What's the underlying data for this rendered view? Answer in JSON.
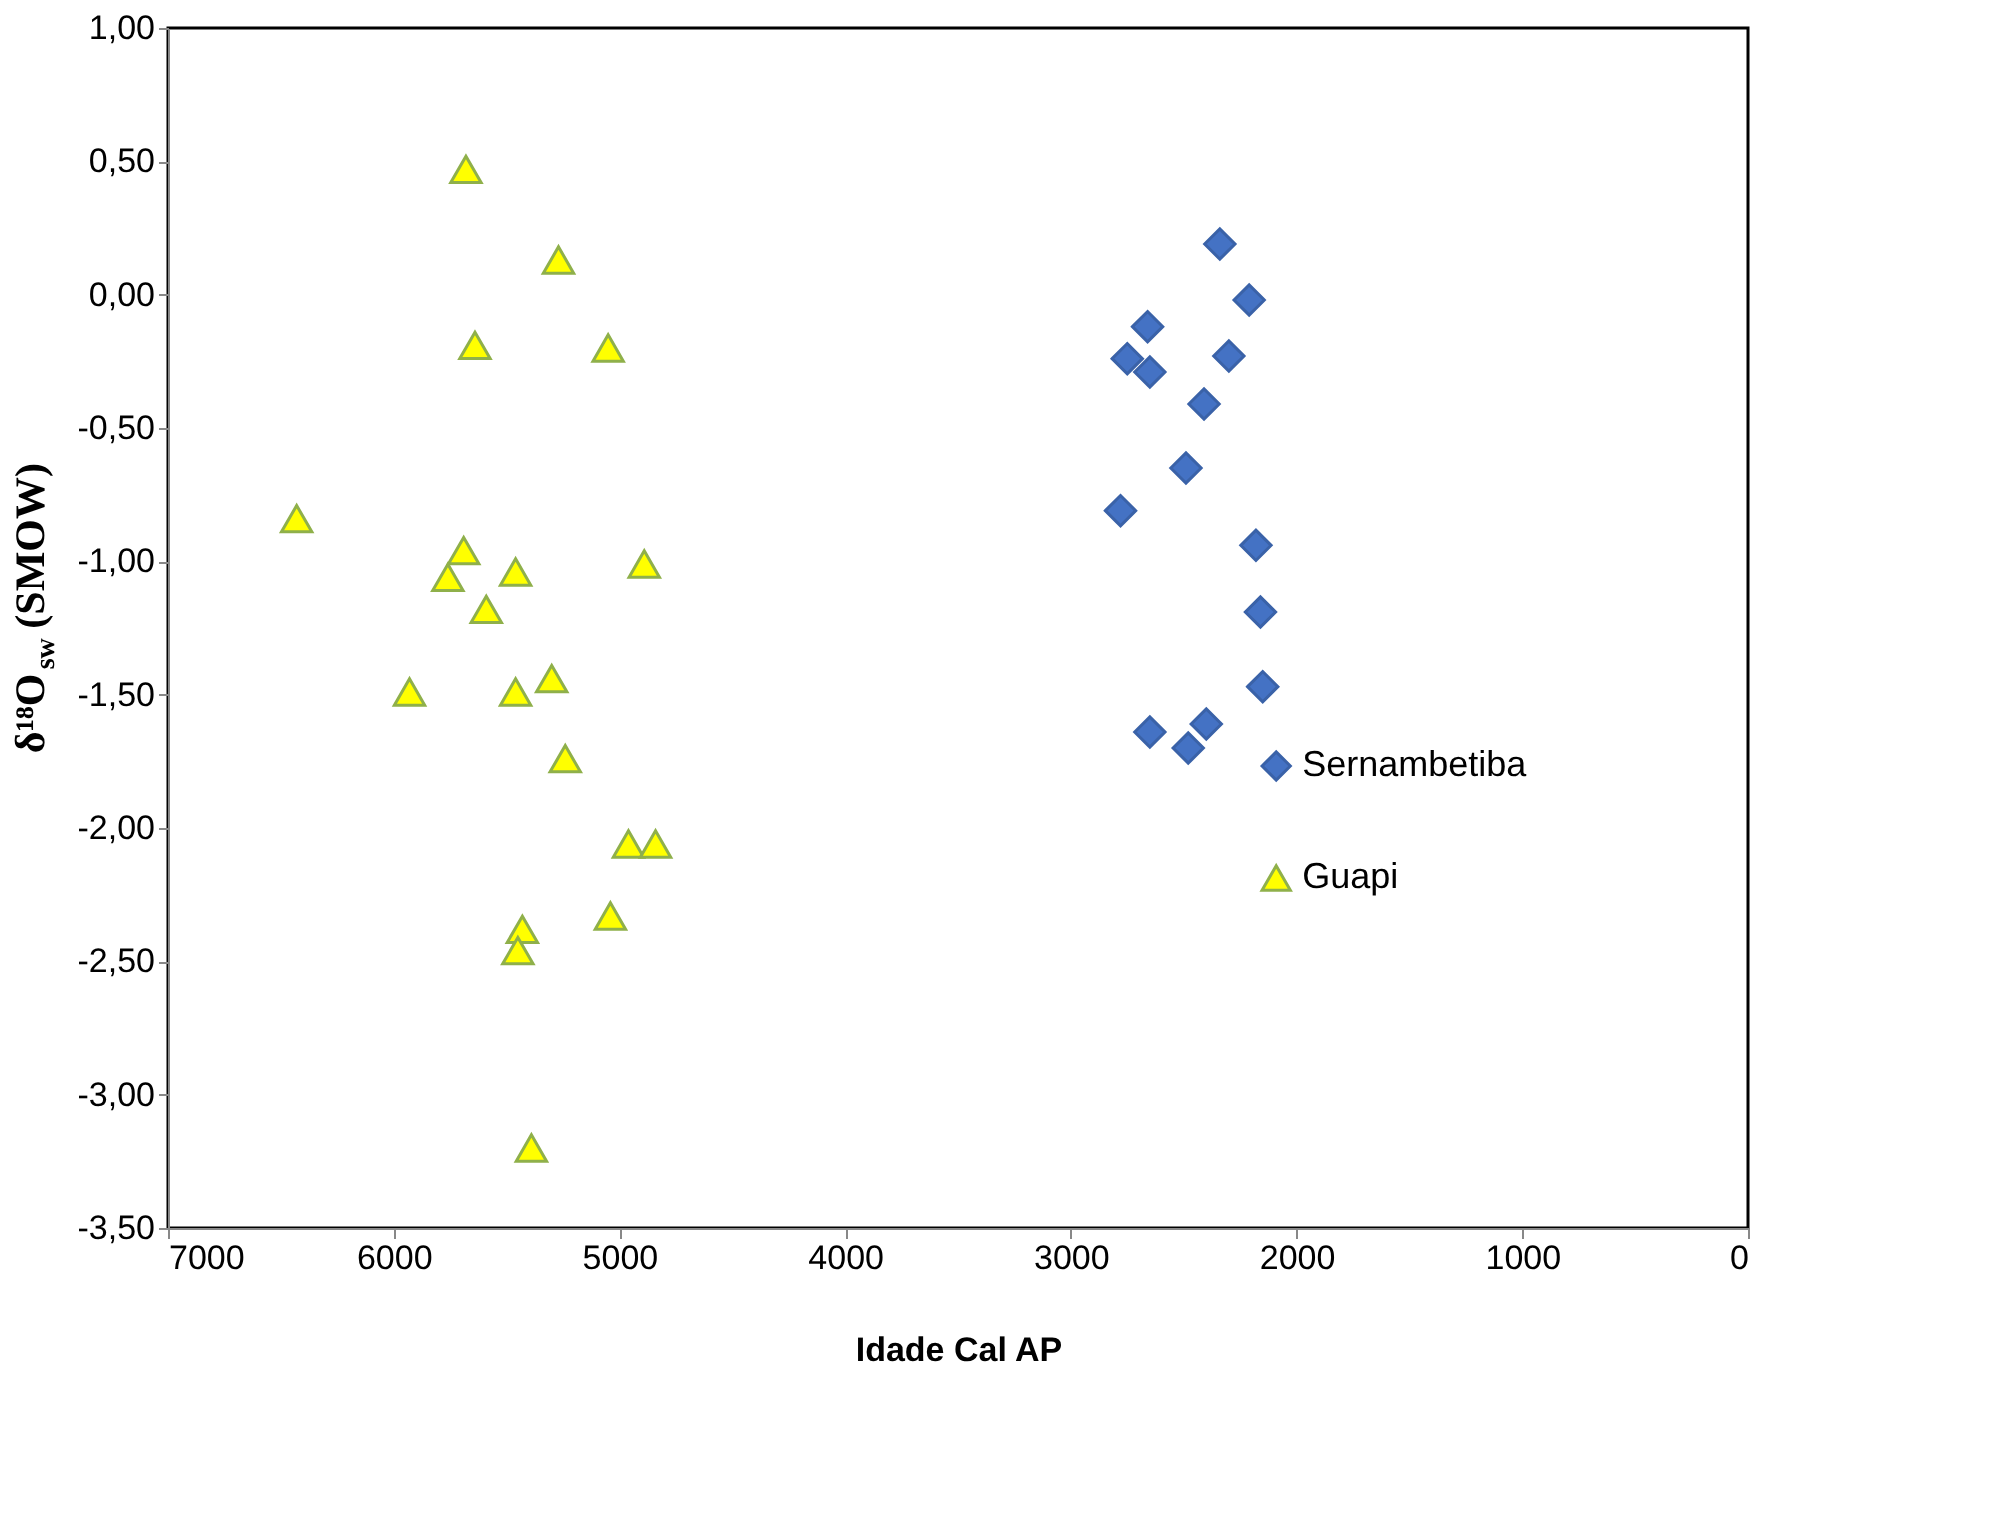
{
  "chart_data": {
    "type": "scatter",
    "xlabel": "Idade Cal AP",
    "ylabel": "δ¹⁸O$_{sw}$ (SMOW)",
    "xlim": [
      7000,
      0
    ],
    "xticks": [
      {
        "value": 7000,
        "label": "7000"
      },
      {
        "value": 6000,
        "label": "6000"
      },
      {
        "value": 5000,
        "label": "5000"
      },
      {
        "value": 4000,
        "label": "4000"
      },
      {
        "value": 3000,
        "label": "3000"
      },
      {
        "value": 2000,
        "label": "2000"
      },
      {
        "value": 1000,
        "label": "1000"
      },
      0
    ],
    "ylim": [
      -3.5,
      1.0
    ],
    "yticks": [
      {
        "value": 1.0,
        "label": "1,00"
      },
      {
        "value": 0.5,
        "label": "0,50"
      },
      {
        "value": 0.0,
        "label": "0,00"
      },
      {
        "value": -0.5,
        "label": "-0,50"
      },
      {
        "value": -1.0,
        "label": "-1,00"
      },
      {
        "value": -1.5,
        "label": "-1,50"
      },
      {
        "value": -2.0,
        "label": "-2,00"
      },
      {
        "value": -2.5,
        "label": "-2,50"
      },
      {
        "value": -3.0,
        "label": "-3,00"
      },
      {
        "value": -3.5,
        "label": "-3,50"
      }
    ],
    "grid": false,
    "legend": "right",
    "series": [
      {
        "name": "Sernambetiba",
        "color": "#4472c4",
        "marker": "diamond",
        "x": [
          2340,
          2210,
          2660,
          2750,
          2650,
          2300,
          2410,
          2490,
          2780,
          2180,
          2160,
          2150,
          2650,
          2400,
          2480
        ],
        "values": [
          0.19,
          -0.02,
          -0.12,
          -0.24,
          -0.29,
          -0.23,
          -0.41,
          -0.65,
          -0.81,
          -0.94,
          -1.19,
          -1.47,
          -1.64,
          -1.61,
          -1.7
        ]
      },
      {
        "name": "Guapi",
        "color": "#ffff00",
        "marker": "triangle",
        "x": [
          5680,
          5270,
          5640,
          5050,
          6430,
          5690,
          5760,
          5460,
          5590,
          4890,
          5930,
          5460,
          5300,
          5240,
          4960,
          4840,
          5430,
          5450,
          5040,
          5390
        ],
        "values": [
          0.47,
          0.13,
          -0.19,
          -0.2,
          -0.84,
          -0.96,
          -1.06,
          -1.04,
          -1.18,
          -1.01,
          -1.49,
          -1.49,
          -1.44,
          -1.74,
          -2.06,
          -2.06,
          -2.38,
          -2.46,
          -2.33,
          -3.2
        ]
      }
    ]
  }
}
